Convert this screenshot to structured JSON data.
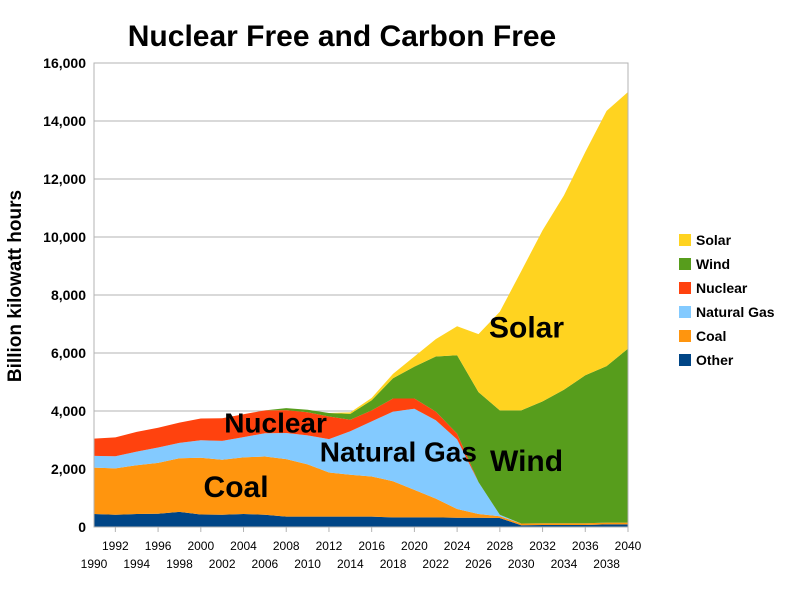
{
  "chart_data": {
    "type": "area",
    "title": "Nuclear Free and Carbon Free",
    "ylabel": "Billion kilowatt hours",
    "xlabel": "",
    "xlim": [
      1990,
      2040
    ],
    "ylim": [
      0,
      16000
    ],
    "grid": true,
    "legend_position": "right",
    "stacked": true,
    "yticks": [
      0,
      2000,
      4000,
      6000,
      8000,
      10000,
      12000,
      14000,
      16000
    ],
    "ytick_labels": [
      "0",
      "2,000",
      "4,000",
      "6,000",
      "8,000",
      "10,000",
      "12,000",
      "14,000",
      "16,000"
    ],
    "xticks_upper": [
      "1992",
      "1996",
      "2000",
      "2004",
      "2008",
      "2012",
      "2016",
      "2020",
      "2024",
      "2028",
      "2032",
      "2036",
      "2040"
    ],
    "xticks_lower": [
      "1990",
      "1994",
      "1998",
      "2002",
      "2006",
      "2010",
      "2014",
      "2018",
      "2022",
      "2026",
      "2030",
      "2034",
      "2038"
    ],
    "x": [
      1990,
      1992,
      1994,
      1996,
      1998,
      2000,
      2002,
      2004,
      2006,
      2008,
      2010,
      2012,
      2014,
      2016,
      2018,
      2020,
      2022,
      2024,
      2026,
      2028,
      2030,
      2032,
      2034,
      2036,
      2038,
      2040
    ],
    "series": [
      {
        "name": "Other",
        "color": "#004586",
        "values": [
          450,
          420,
          450,
          460,
          520,
          430,
          420,
          450,
          420,
          360,
          360,
          360,
          360,
          360,
          330,
          330,
          330,
          320,
          320,
          310,
          60,
          70,
          70,
          70,
          90,
          90
        ]
      },
      {
        "name": "Coal",
        "color": "#ff950e",
        "values": [
          1600,
          1600,
          1680,
          1750,
          1850,
          1960,
          1900,
          1950,
          2010,
          1980,
          1800,
          1520,
          1440,
          1380,
          1250,
          950,
          650,
          300,
          130,
          60,
          60,
          60,
          60,
          60,
          60,
          60
        ]
      },
      {
        "name": "Natural Gas",
        "color": "#83caff",
        "values": [
          400,
          420,
          470,
          530,
          530,
          600,
          650,
          700,
          800,
          900,
          1000,
          1150,
          1500,
          1900,
          2400,
          2800,
          2700,
          2400,
          1100,
          50,
          0,
          0,
          0,
          0,
          0,
          0
        ]
      },
      {
        "name": "Nuclear",
        "color": "#ff420e",
        "values": [
          600,
          650,
          680,
          680,
          700,
          750,
          780,
          790,
          790,
          790,
          800,
          780,
          400,
          380,
          450,
          350,
          300,
          200,
          0,
          0,
          0,
          0,
          0,
          0,
          0,
          0
        ]
      },
      {
        "name": "Wind",
        "color": "#579d1c",
        "values": [
          0,
          0,
          0,
          0,
          0,
          0,
          0,
          0,
          0,
          70,
          80,
          120,
          200,
          350,
          700,
          1100,
          1900,
          2700,
          3100,
          3600,
          3900,
          4200,
          4600,
          5100,
          5400,
          6000
        ]
      },
      {
        "name": "Solar",
        "color": "#ffd320",
        "values": [
          0,
          0,
          0,
          0,
          0,
          0,
          0,
          0,
          0,
          0,
          0,
          0,
          50,
          80,
          150,
          350,
          600,
          1000,
          2000,
          3400,
          4800,
          5900,
          6700,
          7700,
          8800,
          8850
        ]
      }
    ],
    "annotations": [
      {
        "text": "Nuclear",
        "x": 2007.0,
        "y": 3600
      },
      {
        "text": "Natural Gas",
        "x": 2018.5,
        "y": 2600
      },
      {
        "text": "Coal",
        "x": 2003.3,
        "y": 1400
      },
      {
        "text": "Solar",
        "x": 2030.5,
        "y": 6900
      },
      {
        "text": "Wind",
        "x": 2030.5,
        "y": 2300
      }
    ]
  }
}
